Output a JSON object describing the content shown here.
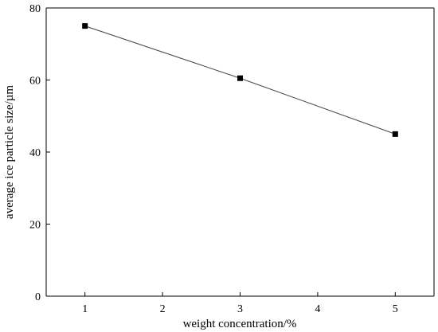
{
  "chart_data": {
    "type": "line",
    "title": "",
    "xlabel": "weight concentration/%",
    "ylabel": "average ice particle size/µm",
    "xlim": [
      0.5,
      5.5
    ],
    "ylim": [
      0,
      80
    ],
    "xticks": [
      1,
      2,
      3,
      4,
      5
    ],
    "yticks": [
      0,
      20,
      40,
      60,
      80
    ],
    "grid": false,
    "legend": "none",
    "series": [
      {
        "x": [
          1,
          3,
          5
        ],
        "y": [
          75,
          60.5,
          45
        ],
        "marker": "square",
        "color": "#000000"
      }
    ]
  }
}
